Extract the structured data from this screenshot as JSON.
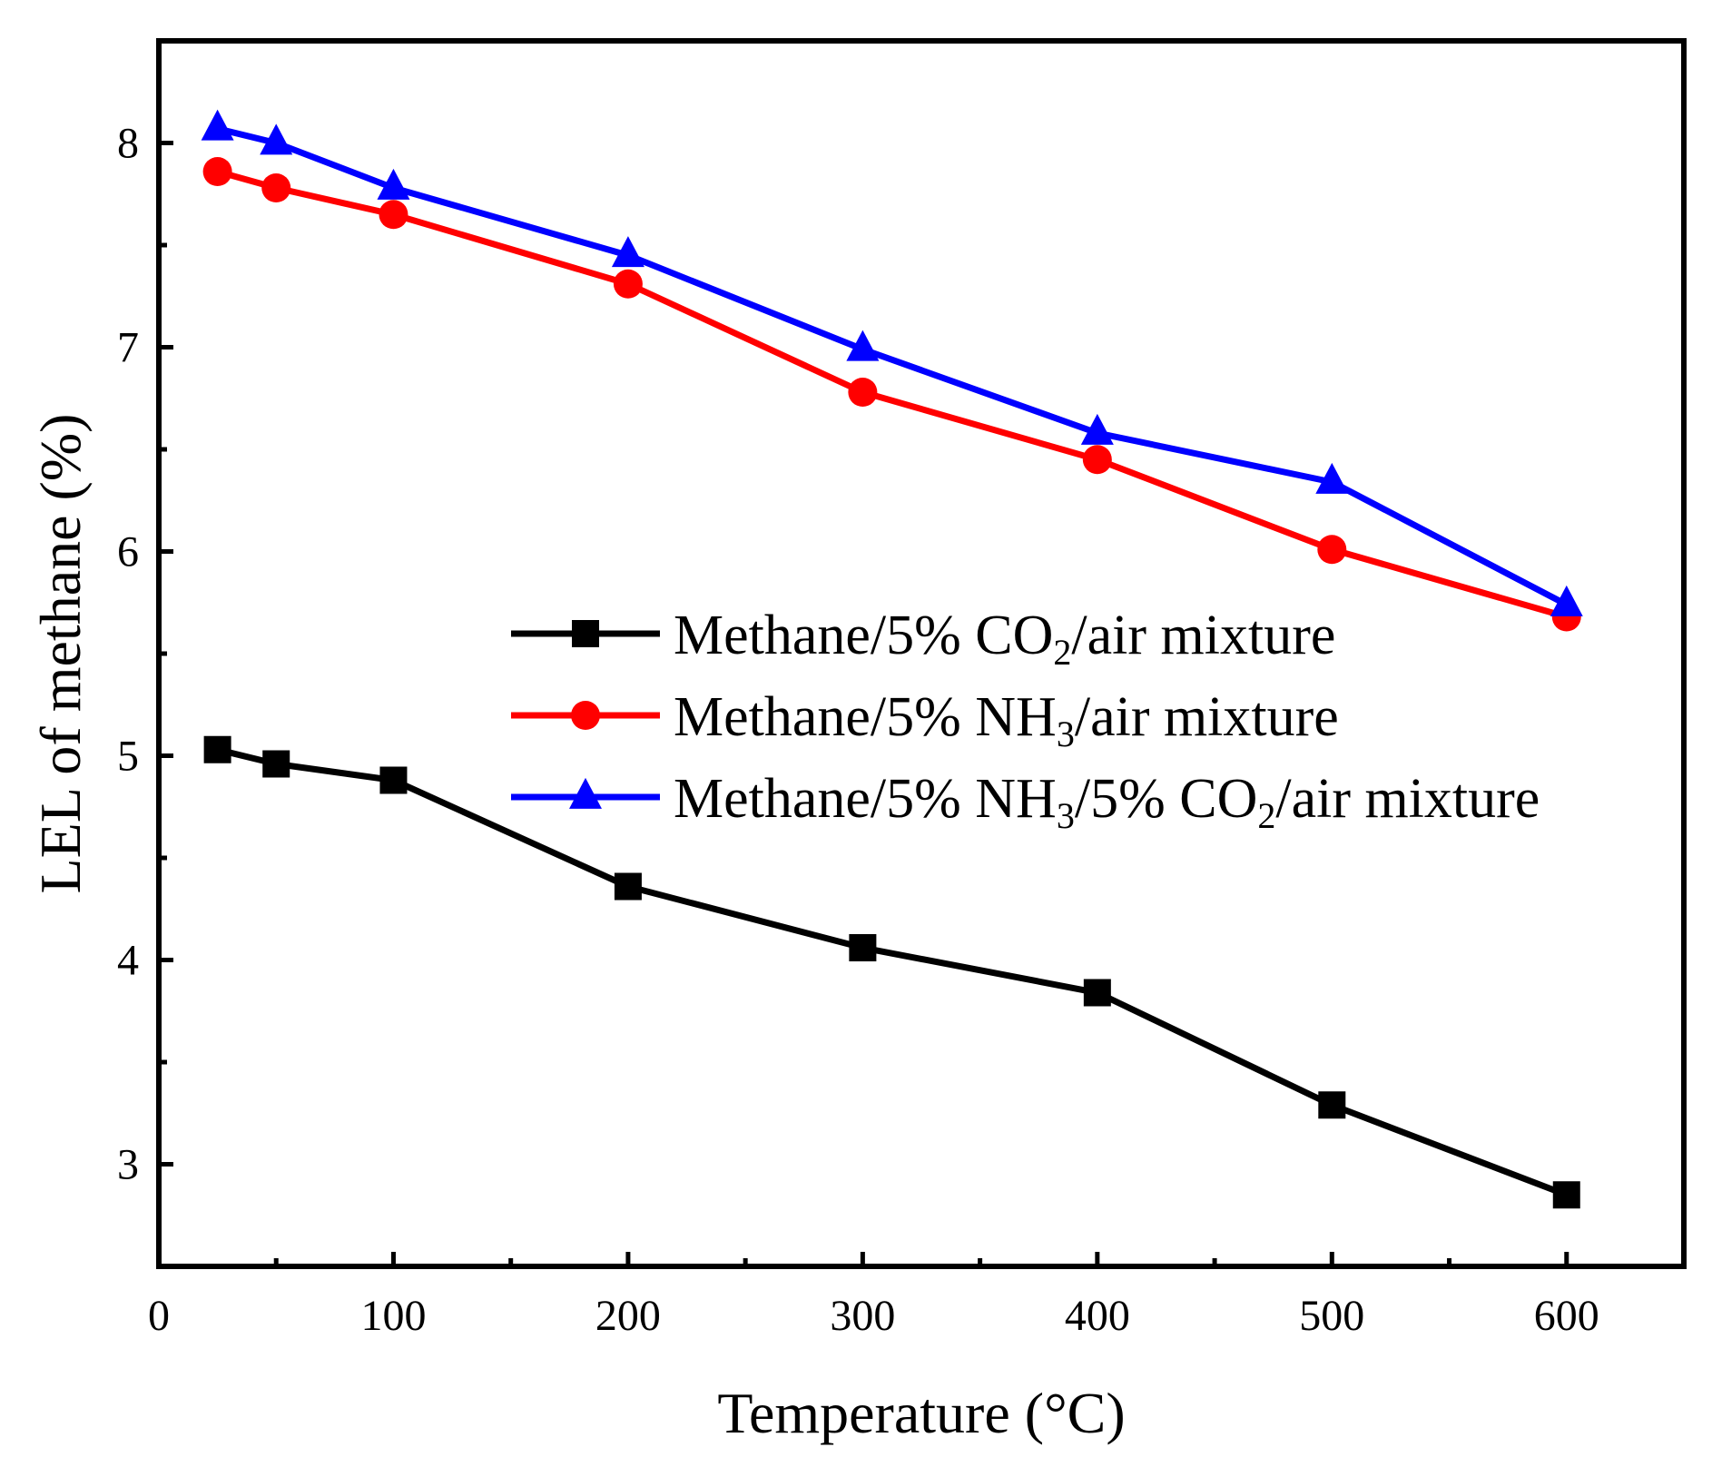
{
  "chart_data": {
    "type": "line",
    "title": "",
    "xlabel": "Temperature (°C)",
    "ylabel": "LEL of methane (%)",
    "xlim": [
      0,
      650
    ],
    "ylim": [
      2.5,
      8.5
    ],
    "x_major_ticks": [
      0,
      100,
      200,
      300,
      400,
      500,
      600
    ],
    "x_tick_labels": [
      "0",
      "100",
      "200",
      "300",
      "400",
      "500",
      "600"
    ],
    "x_minor_ticks": [
      50,
      150,
      250,
      350,
      450,
      550,
      650
    ],
    "y_major_ticks": [
      3,
      4,
      5,
      6,
      7,
      8
    ],
    "y_tick_labels": [
      "3",
      "4",
      "5",
      "6",
      "7",
      "8"
    ],
    "y_minor_ticks": [
      3.5,
      4.5,
      5.5,
      6.5,
      7.5
    ],
    "grid": false,
    "legend_position": "middle-right",
    "x": [
      25,
      50,
      100,
      200,
      300,
      400,
      500,
      600
    ],
    "series": [
      {
        "name": "Methane/5% CO2/air mixture",
        "legend_parts": [
          {
            "text": "Methane/5% CO",
            "sub": false
          },
          {
            "text": "2",
            "sub": true
          },
          {
            "text": "/air mixture",
            "sub": false
          }
        ],
        "color": "#000000",
        "marker": "square",
        "values": [
          5.03,
          4.96,
          4.88,
          4.36,
          4.06,
          3.84,
          3.29,
          2.85
        ]
      },
      {
        "name": "Methane/5% NH3/air mixture",
        "legend_parts": [
          {
            "text": "Methane/5% NH",
            "sub": false
          },
          {
            "text": "3",
            "sub": true
          },
          {
            "text": "/air mixture",
            "sub": false
          }
        ],
        "color": "#ff0000",
        "marker": "circle",
        "values": [
          7.86,
          7.78,
          7.65,
          7.31,
          6.78,
          6.45,
          6.01,
          5.68
        ]
      },
      {
        "name": "Methane/5% NH3/5% CO2/air mixture",
        "legend_parts": [
          {
            "text": "Methane/5% NH",
            "sub": false
          },
          {
            "text": "3",
            "sub": true
          },
          {
            "text": "/5% CO",
            "sub": false
          },
          {
            "text": "2",
            "sub": true
          },
          {
            "text": "/air mixture",
            "sub": false
          }
        ],
        "color": "#0000ff",
        "marker": "triangle",
        "values": [
          8.07,
          8.0,
          7.78,
          7.45,
          6.99,
          6.58,
          6.34,
          5.74
        ]
      }
    ]
  }
}
